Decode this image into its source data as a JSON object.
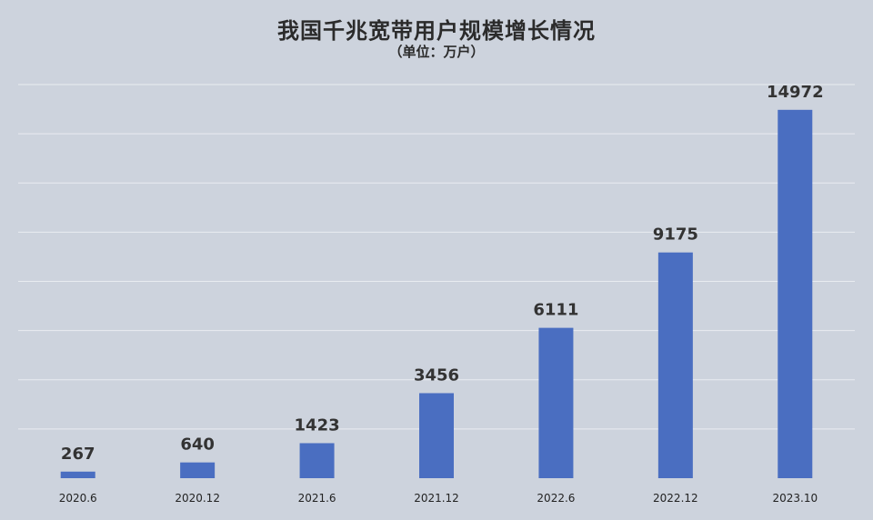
{
  "chart_data": {
    "type": "bar",
    "title": "我国千兆宽带用户规模增长情况",
    "subtitle": "（单位：万户）",
    "categories": [
      "2020.6",
      "2020.12",
      "2021.6",
      "2021.12",
      "2022.6",
      "2022.12",
      "2023.10"
    ],
    "values": [
      267,
      640,
      1423,
      3456,
      6111,
      9175,
      14972
    ],
    "xlabel": "",
    "ylabel": "",
    "ylim": [
      0,
      16000
    ],
    "grid": true,
    "legend": "none",
    "colors": {
      "bar": "#4a6ec1",
      "background": "#cdd3dd",
      "grid": "#e9ecf1"
    }
  }
}
